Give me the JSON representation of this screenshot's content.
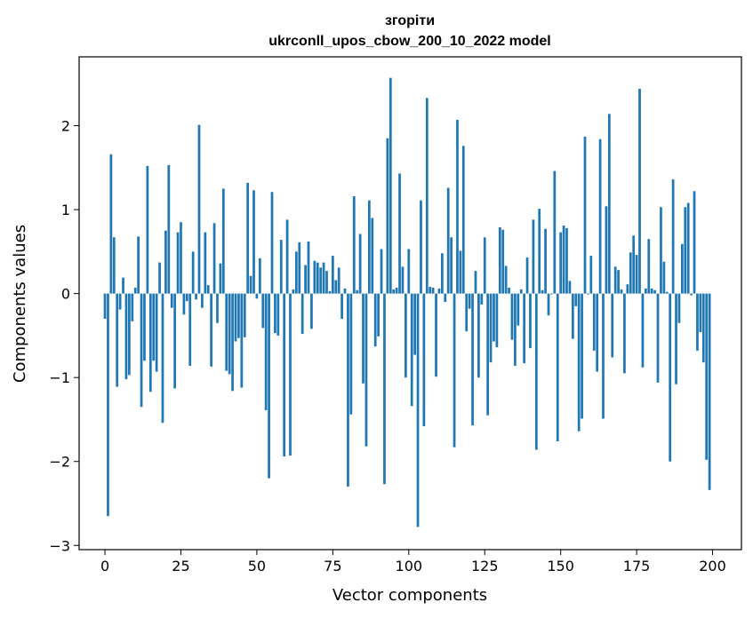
{
  "chart_data": {
    "type": "bar",
    "title": "згоріти",
    "subtitle": "ukrconll_upos_cbow_200_10_2022 model",
    "xlabel": "Vector components",
    "ylabel": "Components values",
    "xlim": [
      -8.5,
      209.5
    ],
    "ylim": [
      -3.05,
      2.82
    ],
    "xticks": [
      0,
      25,
      50,
      75,
      100,
      125,
      150,
      175,
      200
    ],
    "yticks": [
      -3,
      -2,
      -1,
      0,
      1,
      2
    ],
    "ytick_labels": [
      "−3",
      "−2",
      "−1",
      "0",
      "1",
      "2"
    ],
    "grid": false,
    "bar_color": "#1f77b4",
    "x": [
      0,
      1,
      2,
      3,
      4,
      5,
      6,
      7,
      8,
      9,
      10,
      11,
      12,
      13,
      14,
      15,
      16,
      17,
      18,
      19,
      20,
      21,
      22,
      23,
      24,
      25,
      26,
      27,
      28,
      29,
      30,
      31,
      32,
      33,
      34,
      35,
      36,
      37,
      38,
      39,
      40,
      41,
      42,
      43,
      44,
      45,
      46,
      47,
      48,
      49,
      50,
      51,
      52,
      53,
      54,
      55,
      56,
      57,
      58,
      59,
      60,
      61,
      62,
      63,
      64,
      65,
      66,
      67,
      68,
      69,
      70,
      71,
      72,
      73,
      74,
      75,
      76,
      77,
      78,
      79,
      80,
      81,
      82,
      83,
      84,
      85,
      86,
      87,
      88,
      89,
      90,
      91,
      92,
      93,
      94,
      95,
      96,
      97,
      98,
      99,
      100,
      101,
      102,
      103,
      104,
      105,
      106,
      107,
      108,
      109,
      110,
      111,
      112,
      113,
      114,
      115,
      116,
      117,
      118,
      119,
      120,
      121,
      122,
      123,
      124,
      125,
      126,
      127,
      128,
      129,
      130,
      131,
      132,
      133,
      134,
      135,
      136,
      137,
      138,
      139,
      140,
      141,
      142,
      143,
      144,
      145,
      146,
      147,
      148,
      149,
      150,
      151,
      152,
      153,
      154,
      155,
      156,
      157,
      158,
      159,
      160,
      161,
      162,
      163,
      164,
      165,
      166,
      167,
      168,
      169,
      170,
      171,
      172,
      173,
      174,
      175,
      176,
      177,
      178,
      179,
      180,
      181,
      182,
      183,
      184,
      185,
      186,
      187,
      188,
      189,
      190,
      191,
      192,
      193,
      194,
      195,
      196,
      197,
      198,
      199
    ],
    "values": [
      -0.3,
      -2.65,
      1.66,
      0.67,
      -1.11,
      -0.19,
      0.19,
      -1.02,
      -0.97,
      -0.33,
      0.07,
      0.68,
      -1.35,
      -0.8,
      1.52,
      -1.17,
      -0.8,
      -0.93,
      0.37,
      -1.54,
      0.75,
      1.53,
      -0.17,
      -1.13,
      0.73,
      0.85,
      -0.25,
      -0.09,
      -0.86,
      0.5,
      -0.07,
      2.01,
      -0.17,
      0.73,
      0.1,
      -0.87,
      0.84,
      -0.35,
      0.36,
      1.25,
      -0.92,
      -0.96,
      -1.16,
      -0.57,
      -0.53,
      -1.12,
      -0.52,
      1.32,
      0.21,
      1.23,
      -0.06,
      0.42,
      -0.41,
      -1.39,
      -2.2,
      1.21,
      -0.47,
      -0.5,
      0.64,
      -1.94,
      0.88,
      -1.93,
      0.05,
      0.5,
      0.61,
      -0.48,
      0.34,
      0.62,
      -0.42,
      0.39,
      0.37,
      0.31,
      0.37,
      0.27,
      0.03,
      0.45,
      0.16,
      0.31,
      -0.3,
      0.06,
      -2.3,
      -1.44,
      1.16,
      0.04,
      0.71,
      -1.07,
      -1.82,
      1.11,
      0.9,
      -0.63,
      -0.51,
      0.53,
      -2.27,
      1.85,
      2.57,
      0.05,
      0.07,
      1.43,
      0.32,
      -1.0,
      0.53,
      -1.34,
      -0.73,
      -2.78,
      1.11,
      -1.58,
      2.33,
      0.08,
      0.07,
      -0.99,
      0.06,
      0.48,
      -0.1,
      1.26,
      0.67,
      -1.83,
      2.07,
      0.51,
      1.76,
      -0.45,
      -0.18,
      -1.57,
      0.27,
      -1.0,
      -0.13,
      0.67,
      -1.45,
      -0.82,
      -0.57,
      -0.64,
      0.79,
      0.76,
      0.33,
      0.07,
      -0.55,
      -0.86,
      -0.38,
      0.05,
      -0.83,
      0.43,
      -0.65,
      0.88,
      -1.86,
      1.01,
      0.04,
      0.77,
      -0.26,
      -0.01,
      1.46,
      -1.76,
      0.73,
      0.81,
      0.78,
      0.15,
      -0.54,
      -0.15,
      -1.64,
      -1.49,
      1.87,
      -0.01,
      0.45,
      -0.68,
      -0.93,
      1.84,
      -1.49,
      1.04,
      2.14,
      -0.76,
      0.32,
      0.28,
      0.05,
      -0.95,
      0.11,
      0.49,
      0.69,
      0.46,
      2.44,
      -0.88,
      0.06,
      0.65,
      0.06,
      0.04,
      -1.06,
      1.03,
      0.38,
      0.02,
      -2.0,
      1.36,
      -1.08,
      -0.35,
      0.59,
      1.03,
      1.08,
      -0.02,
      1.22,
      -0.68,
      -0.46,
      -0.82,
      -1.98,
      -2.34
    ]
  }
}
